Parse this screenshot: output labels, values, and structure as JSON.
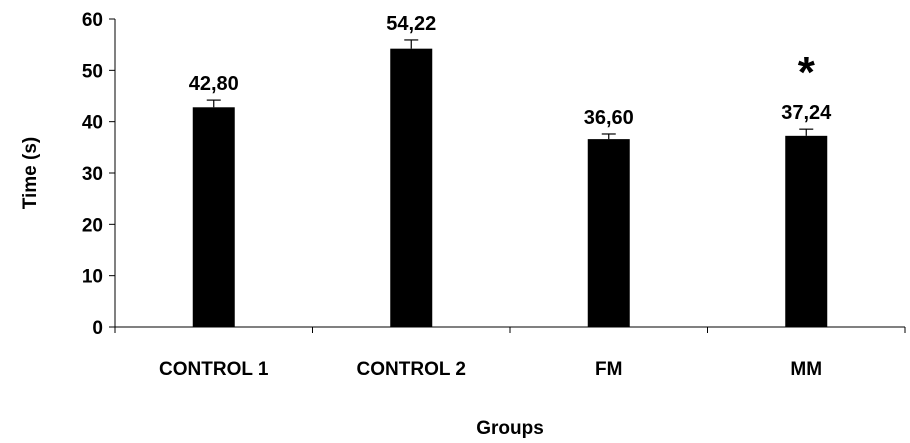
{
  "chart_data": {
    "type": "bar",
    "categories": [
      "CONTROL 1",
      "CONTROL 2",
      "FM",
      "MM"
    ],
    "values": [
      42.8,
      54.22,
      36.6,
      37.24
    ],
    "data_labels": [
      "42,80",
      "54,22",
      "36,60",
      "37,24"
    ],
    "error": [
      1.4,
      1.7,
      1.0,
      1.3
    ],
    "significance": [
      "",
      "",
      "",
      "*"
    ],
    "xlabel": "Groups",
    "ylabel": "Time (s)",
    "ylim": [
      0,
      60
    ],
    "yticks": [
      0,
      10,
      20,
      30,
      40,
      50,
      60
    ],
    "grid": false,
    "bar_color": "#000000"
  }
}
